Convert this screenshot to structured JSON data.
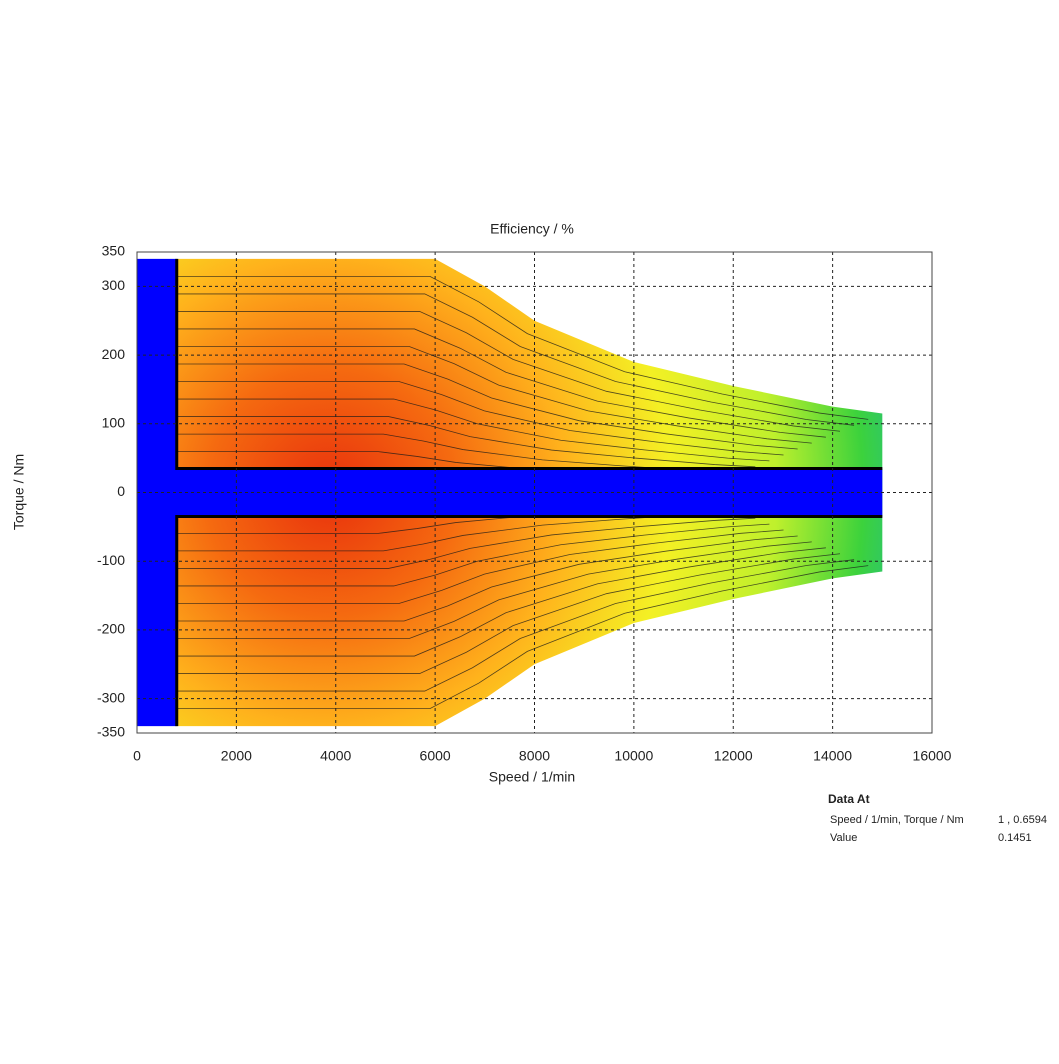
{
  "chart_data": {
    "type": "efficiency_map",
    "title": "Efficiency / %",
    "x_label": "Speed / 1/min",
    "y_label": "Torque / Nm",
    "xlim": [
      0,
      16000
    ],
    "xticks": [
      0,
      2000,
      4000,
      6000,
      8000,
      10000,
      12000,
      14000,
      16000
    ],
    "ylim": [
      -350,
      350
    ],
    "yticks": [
      -350,
      -300,
      -200,
      -100,
      0,
      100,
      200,
      300,
      350
    ],
    "grid": true,
    "envelope_speed": [
      800,
      6000,
      7000,
      8000,
      10000,
      12000,
      14000,
      15000
    ],
    "envelope_torque_max": [
      340,
      340,
      300,
      250,
      190,
      155,
      125,
      115
    ],
    "envelope_torque_min": [
      -340,
      -340,
      -300,
      -250,
      -190,
      -155,
      -125,
      -115
    ],
    "blocked_speed": 800,
    "blocked_torque": 35,
    "blocked_color": "#0000ff",
    "data_at": {
      "title": "Data At",
      "position_label": "Speed / 1/min, Torque / Nm",
      "position_value": "1 , 0.6594",
      "value_label": "Value",
      "value": 0.1451
    }
  }
}
